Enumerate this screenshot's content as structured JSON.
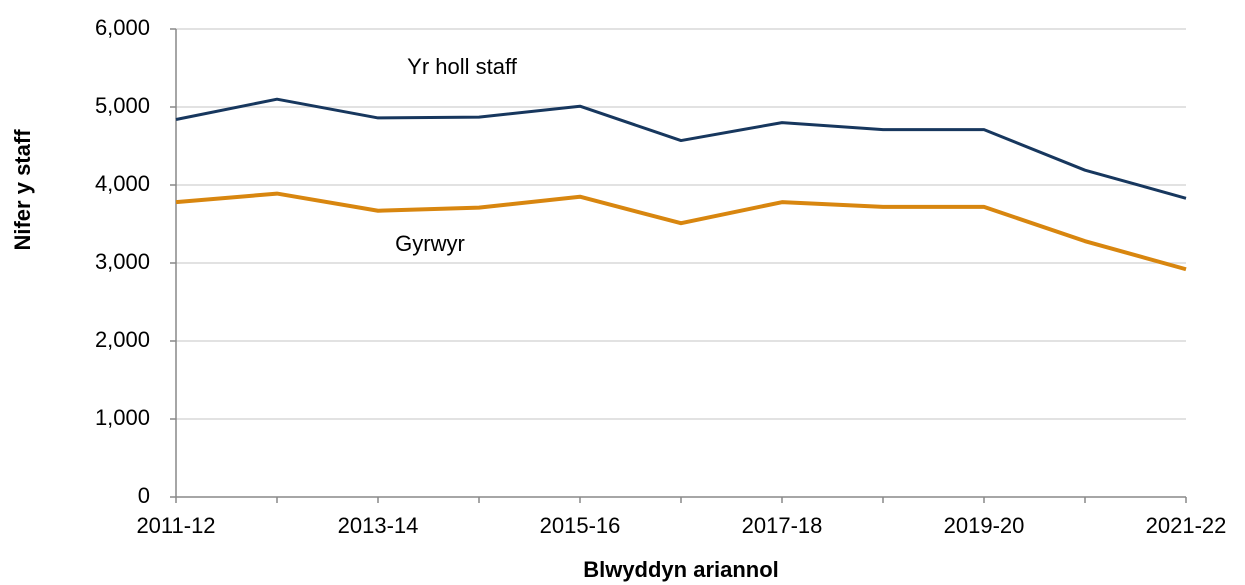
{
  "chart_data": {
    "type": "line",
    "xlabel": "Blwyddyn ariannol",
    "ylabel": "Nifer y staff",
    "categories": [
      "2011-12",
      null,
      "2013-14",
      null,
      "2015-16",
      null,
      "2017-18",
      null,
      "2019-20",
      null,
      "2021-22"
    ],
    "series": [
      {
        "name": "Yr holl staff",
        "color": "#17375e",
        "values": [
          4840,
          5100,
          4860,
          4870,
          5010,
          4570,
          4800,
          4710,
          4710,
          4190,
          3830
        ]
      },
      {
        "name": "Gyrwyr",
        "color": "#d8860f",
        "values": [
          3780,
          3890,
          3670,
          3710,
          3850,
          3510,
          3780,
          3720,
          3720,
          3280,
          2920
        ]
      }
    ],
    "ylim": [
      0,
      6000
    ],
    "yticks": [
      0,
      {
        "value": 1000,
        "label": "1,000"
      },
      {
        "value": 2000,
        "label": "2,000"
      },
      {
        "value": 3000,
        "label": "3,000"
      },
      {
        "value": 4000,
        "label": "4,000"
      },
      {
        "value": 5000,
        "label": "5,000"
      },
      {
        "value": 6000,
        "label": "6,000"
      }
    ],
    "grid": true
  }
}
